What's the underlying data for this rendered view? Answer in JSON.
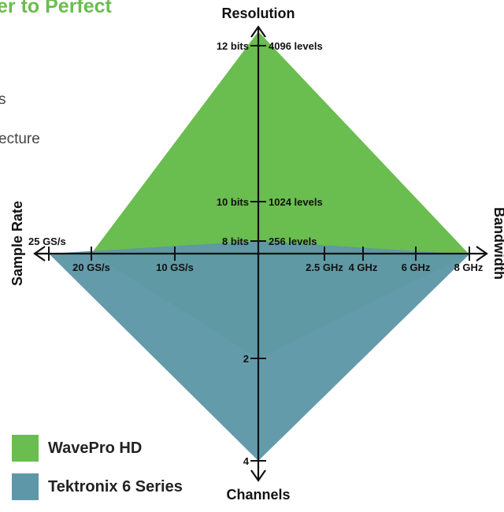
{
  "background_text": {
    "title_fragment": "er to Perfect",
    "line1": "s",
    "line2": "ecture"
  },
  "colors": {
    "wavepro": "#6abd4f",
    "tektronix": "#5e97a8",
    "axis": "#111111"
  },
  "chart_data": {
    "type": "radar",
    "axes": {
      "resolution": {
        "label": "Resolution",
        "direction": "up",
        "ticks": [
          {
            "value": "8 bits",
            "alt": "256 levels"
          },
          {
            "value": "10 bits",
            "alt": "1024 levels"
          },
          {
            "value": "12 bits",
            "alt": "4096 levels"
          }
        ]
      },
      "bandwidth": {
        "label": "Bandwidth",
        "direction": "right",
        "ticks": [
          "2.5 GHz",
          "4 GHz",
          "6 GHz",
          "8 GHz"
        ]
      },
      "channels": {
        "label": "Channels",
        "direction": "down",
        "ticks": [
          "2",
          "4"
        ]
      },
      "sample_rate": {
        "label": "Sample Rate",
        "direction": "left",
        "ticks": [
          "10 GS/s",
          "20 GS/s",
          "25 GS/s"
        ]
      }
    },
    "series": [
      {
        "name": "WavePro HD",
        "color": "#6abd4f",
        "values": {
          "resolution": "12 bits",
          "bandwidth": "8 GHz",
          "channels": "2",
          "sample_rate": "20 GS/s"
        }
      },
      {
        "name": "Tektronix 6 Series",
        "color": "#5e97a8",
        "values": {
          "resolution": "8 bits",
          "bandwidth": "8 GHz",
          "channels": "4",
          "sample_rate": "25 GS/s"
        }
      }
    ]
  }
}
